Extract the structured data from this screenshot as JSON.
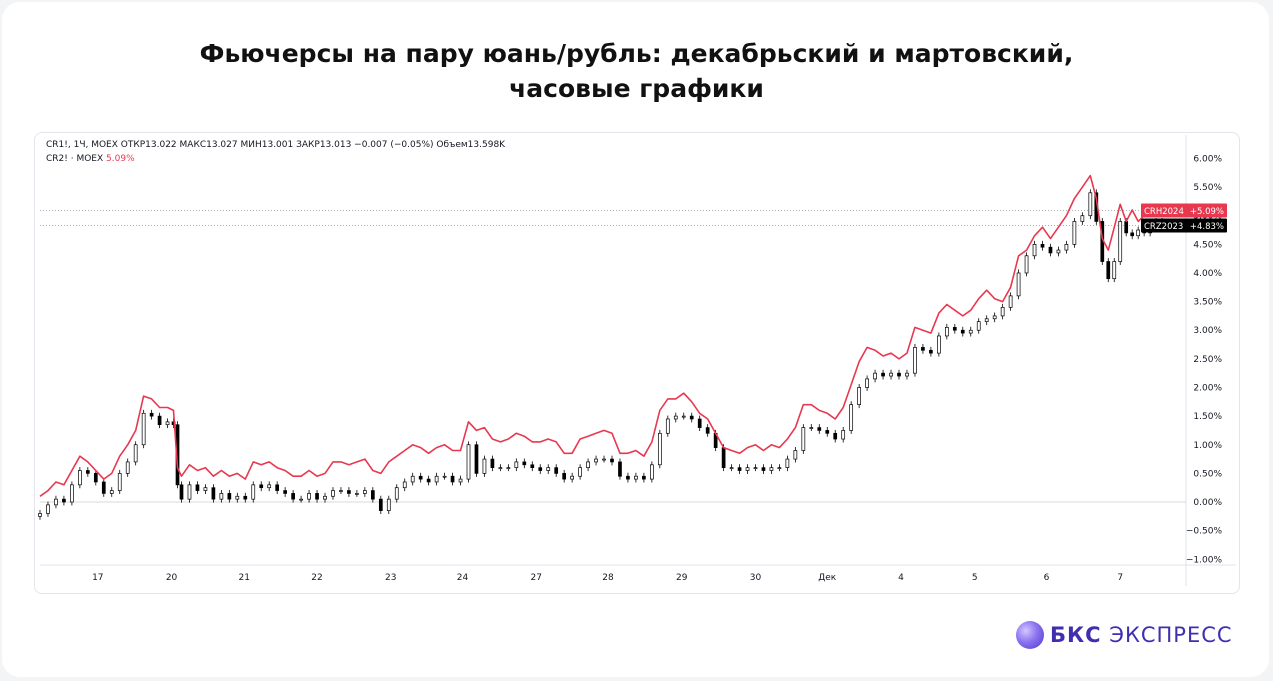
{
  "title_line1": "Фьючерсы на пару юань/рубль: декабрьский и мартовский,",
  "title_line2": "часовые графики",
  "legend": {
    "line1": "CR1!, 1Ч, MOEX  ОТКР13.022  МАКС13.027  МИН13.001  ЗАКР13.013  −0.007 (−0.05%)  Объем13.598K",
    "line2_prefix": "CR2! · MOEX",
    "line2_value": "5.09%"
  },
  "brand": {
    "bold": "БКС",
    "rest": "ЭКСПРЕСС"
  },
  "colors": {
    "line": "#e8384f",
    "candle_up": "#ffffff",
    "candle_down": "#000000",
    "label_red": "#e8384f",
    "label_black": "#000000"
  },
  "chart_data": {
    "type": "line",
    "y_unit": "%",
    "ylim": [
      -1.1,
      6.2
    ],
    "y_ticks": [
      "6.00%",
      "5.50%",
      "5.00%",
      "4.50%",
      "4.00%",
      "3.50%",
      "3.00%",
      "2.50%",
      "2.00%",
      "1.50%",
      "1.00%",
      "0.50%",
      "0.00%",
      "−0.50%",
      "−1.00%"
    ],
    "y_tick_values": [
      6,
      5.5,
      5,
      4.5,
      4,
      3.5,
      3,
      2.5,
      2,
      1.5,
      1,
      0.5,
      0,
      -0.5,
      -1
    ],
    "xlim": [
      0,
      1150
    ],
    "x_ticks": [
      "17",
      "20",
      "21",
      "22",
      "23",
      "24",
      "27",
      "28",
      "29",
      "30",
      "Дек",
      "4",
      "5",
      "6",
      "7"
    ],
    "x_tick_values": [
      58,
      132,
      205,
      278,
      352,
      424,
      498,
      570,
      644,
      718,
      790,
      864,
      938,
      1010,
      1084
    ],
    "price_labels": [
      {
        "name": "CRH2024",
        "text": "CRH2024",
        "value": "+5.09%",
        "y": 5.09,
        "color": "#e8384f"
      },
      {
        "name": "CRZ2023",
        "text": "CRZ2023",
        "value": "+4.83%",
        "y": 4.83,
        "color": "#000000"
      }
    ],
    "series": [
      {
        "name": "CR2!",
        "style": "line",
        "points": [
          [
            0,
            0.1
          ],
          [
            8,
            0.2
          ],
          [
            16,
            0.35
          ],
          [
            24,
            0.3
          ],
          [
            32,
            0.55
          ],
          [
            40,
            0.8
          ],
          [
            48,
            0.7
          ],
          [
            56,
            0.55
          ],
          [
            64,
            0.4
          ],
          [
            72,
            0.5
          ],
          [
            80,
            0.8
          ],
          [
            88,
            1.0
          ],
          [
            96,
            1.25
          ],
          [
            104,
            1.85
          ],
          [
            112,
            1.8
          ],
          [
            120,
            1.65
          ],
          [
            128,
            1.65
          ],
          [
            134,
            1.6
          ],
          [
            138,
            0.6
          ],
          [
            142,
            0.45
          ],
          [
            150,
            0.65
          ],
          [
            158,
            0.55
          ],
          [
            166,
            0.6
          ],
          [
            174,
            0.45
          ],
          [
            182,
            0.55
          ],
          [
            190,
            0.45
          ],
          [
            198,
            0.5
          ],
          [
            206,
            0.4
          ],
          [
            214,
            0.7
          ],
          [
            222,
            0.65
          ],
          [
            230,
            0.7
          ],
          [
            238,
            0.6
          ],
          [
            246,
            0.55
          ],
          [
            254,
            0.45
          ],
          [
            262,
            0.45
          ],
          [
            270,
            0.55
          ],
          [
            278,
            0.45
          ],
          [
            286,
            0.5
          ],
          [
            294,
            0.7
          ],
          [
            302,
            0.7
          ],
          [
            310,
            0.65
          ],
          [
            318,
            0.7
          ],
          [
            326,
            0.75
          ],
          [
            334,
            0.55
          ],
          [
            342,
            0.5
          ],
          [
            350,
            0.7
          ],
          [
            358,
            0.8
          ],
          [
            366,
            0.9
          ],
          [
            374,
            1.0
          ],
          [
            382,
            0.95
          ],
          [
            390,
            0.85
          ],
          [
            398,
            0.95
          ],
          [
            406,
            1.0
          ],
          [
            414,
            0.9
          ],
          [
            422,
            0.9
          ],
          [
            430,
            1.4
          ],
          [
            438,
            1.25
          ],
          [
            446,
            1.3
          ],
          [
            454,
            1.1
          ],
          [
            462,
            1.05
          ],
          [
            470,
            1.1
          ],
          [
            478,
            1.2
          ],
          [
            486,
            1.15
          ],
          [
            494,
            1.05
          ],
          [
            502,
            1.05
          ],
          [
            510,
            1.1
          ],
          [
            518,
            1.05
          ],
          [
            526,
            0.85
          ],
          [
            534,
            0.85
          ],
          [
            542,
            1.1
          ],
          [
            550,
            1.15
          ],
          [
            558,
            1.2
          ],
          [
            566,
            1.25
          ],
          [
            574,
            1.2
          ],
          [
            582,
            0.85
          ],
          [
            590,
            0.85
          ],
          [
            598,
            0.9
          ],
          [
            606,
            0.8
          ],
          [
            614,
            1.05
          ],
          [
            622,
            1.6
          ],
          [
            630,
            1.8
          ],
          [
            638,
            1.8
          ],
          [
            646,
            1.9
          ],
          [
            654,
            1.75
          ],
          [
            662,
            1.55
          ],
          [
            670,
            1.45
          ],
          [
            678,
            1.2
          ],
          [
            686,
            0.95
          ],
          [
            694,
            0.9
          ],
          [
            702,
            0.85
          ],
          [
            710,
            0.95
          ],
          [
            718,
            1.0
          ],
          [
            726,
            0.9
          ],
          [
            734,
            1.0
          ],
          [
            742,
            0.95
          ],
          [
            750,
            1.1
          ],
          [
            758,
            1.3
          ],
          [
            766,
            1.7
          ],
          [
            774,
            1.7
          ],
          [
            782,
            1.6
          ],
          [
            790,
            1.55
          ],
          [
            798,
            1.45
          ],
          [
            806,
            1.65
          ],
          [
            814,
            2.05
          ],
          [
            822,
            2.45
          ],
          [
            830,
            2.7
          ],
          [
            838,
            2.65
          ],
          [
            846,
            2.55
          ],
          [
            854,
            2.6
          ],
          [
            862,
            2.5
          ],
          [
            870,
            2.6
          ],
          [
            878,
            3.05
          ],
          [
            886,
            3.0
          ],
          [
            894,
            2.95
          ],
          [
            902,
            3.3
          ],
          [
            910,
            3.45
          ],
          [
            918,
            3.35
          ],
          [
            926,
            3.25
          ],
          [
            934,
            3.35
          ],
          [
            942,
            3.55
          ],
          [
            950,
            3.7
          ],
          [
            958,
            3.55
          ],
          [
            966,
            3.5
          ],
          [
            974,
            3.75
          ],
          [
            982,
            4.3
          ],
          [
            990,
            4.4
          ],
          [
            998,
            4.65
          ],
          [
            1006,
            4.8
          ],
          [
            1014,
            4.6
          ],
          [
            1022,
            4.8
          ],
          [
            1030,
            5.0
          ],
          [
            1038,
            5.3
          ],
          [
            1046,
            5.5
          ],
          [
            1054,
            5.7
          ],
          [
            1060,
            5.3
          ],
          [
            1066,
            4.6
          ],
          [
            1072,
            4.4
          ],
          [
            1078,
            4.8
          ],
          [
            1084,
            5.2
          ],
          [
            1090,
            4.9
          ],
          [
            1096,
            5.1
          ],
          [
            1102,
            4.9
          ],
          [
            1108,
            5.0
          ],
          [
            1114,
            5.1
          ],
          [
            1120,
            5.2
          ],
          [
            1126,
            5.09
          ]
        ]
      },
      {
        "name": "CR1!",
        "style": "candles",
        "points": [
          [
            0,
            -0.2
          ],
          [
            8,
            -0.05
          ],
          [
            16,
            0.05
          ],
          [
            24,
            0.0
          ],
          [
            32,
            0.3
          ],
          [
            40,
            0.55
          ],
          [
            48,
            0.5
          ],
          [
            56,
            0.35
          ],
          [
            64,
            0.15
          ],
          [
            72,
            0.2
          ],
          [
            80,
            0.5
          ],
          [
            88,
            0.7
          ],
          [
            96,
            1.0
          ],
          [
            104,
            1.55
          ],
          [
            112,
            1.5
          ],
          [
            120,
            1.35
          ],
          [
            128,
            1.4
          ],
          [
            134,
            1.35
          ],
          [
            138,
            0.3
          ],
          [
            142,
            0.05
          ],
          [
            150,
            0.3
          ],
          [
            158,
            0.2
          ],
          [
            166,
            0.25
          ],
          [
            174,
            0.05
          ],
          [
            182,
            0.15
          ],
          [
            190,
            0.05
          ],
          [
            198,
            0.1
          ],
          [
            206,
            0.05
          ],
          [
            214,
            0.3
          ],
          [
            222,
            0.25
          ],
          [
            230,
            0.3
          ],
          [
            238,
            0.2
          ],
          [
            246,
            0.15
          ],
          [
            254,
            0.05
          ],
          [
            262,
            0.05
          ],
          [
            270,
            0.15
          ],
          [
            278,
            0.05
          ],
          [
            286,
            0.1
          ],
          [
            294,
            0.2
          ],
          [
            302,
            0.2
          ],
          [
            310,
            0.15
          ],
          [
            318,
            0.15
          ],
          [
            326,
            0.2
          ],
          [
            334,
            0.05
          ],
          [
            342,
            -0.15
          ],
          [
            350,
            0.05
          ],
          [
            358,
            0.25
          ],
          [
            366,
            0.35
          ],
          [
            374,
            0.45
          ],
          [
            382,
            0.4
          ],
          [
            390,
            0.35
          ],
          [
            398,
            0.45
          ],
          [
            406,
            0.45
          ],
          [
            414,
            0.35
          ],
          [
            422,
            0.4
          ],
          [
            430,
            1.0
          ],
          [
            438,
            0.5
          ],
          [
            446,
            0.75
          ],
          [
            454,
            0.6
          ],
          [
            462,
            0.6
          ],
          [
            470,
            0.6
          ],
          [
            478,
            0.7
          ],
          [
            486,
            0.65
          ],
          [
            494,
            0.6
          ],
          [
            502,
            0.55
          ],
          [
            510,
            0.6
          ],
          [
            518,
            0.5
          ],
          [
            526,
            0.4
          ],
          [
            534,
            0.45
          ],
          [
            542,
            0.6
          ],
          [
            550,
            0.7
          ],
          [
            558,
            0.75
          ],
          [
            566,
            0.75
          ],
          [
            574,
            0.7
          ],
          [
            582,
            0.45
          ],
          [
            590,
            0.4
          ],
          [
            598,
            0.45
          ],
          [
            606,
            0.4
          ],
          [
            614,
            0.65
          ],
          [
            622,
            1.2
          ],
          [
            630,
            1.45
          ],
          [
            638,
            1.5
          ],
          [
            646,
            1.5
          ],
          [
            654,
            1.45
          ],
          [
            662,
            1.3
          ],
          [
            670,
            1.2
          ],
          [
            678,
            0.95
          ],
          [
            686,
            0.6
          ],
          [
            694,
            0.6
          ],
          [
            702,
            0.55
          ],
          [
            710,
            0.6
          ],
          [
            718,
            0.6
          ],
          [
            726,
            0.55
          ],
          [
            734,
            0.6
          ],
          [
            742,
            0.6
          ],
          [
            750,
            0.75
          ],
          [
            758,
            0.9
          ],
          [
            766,
            1.3
          ],
          [
            774,
            1.3
          ],
          [
            782,
            1.25
          ],
          [
            790,
            1.2
          ],
          [
            798,
            1.1
          ],
          [
            806,
            1.25
          ],
          [
            814,
            1.7
          ],
          [
            822,
            2.0
          ],
          [
            830,
            2.15
          ],
          [
            838,
            2.25
          ],
          [
            846,
            2.2
          ],
          [
            854,
            2.25
          ],
          [
            862,
            2.2
          ],
          [
            870,
            2.25
          ],
          [
            878,
            2.7
          ],
          [
            886,
            2.65
          ],
          [
            894,
            2.6
          ],
          [
            902,
            2.9
          ],
          [
            910,
            3.05
          ],
          [
            918,
            3.0
          ],
          [
            926,
            2.95
          ],
          [
            934,
            3.0
          ],
          [
            942,
            3.15
          ],
          [
            950,
            3.2
          ],
          [
            958,
            3.25
          ],
          [
            966,
            3.4
          ],
          [
            974,
            3.6
          ],
          [
            982,
            4.0
          ],
          [
            990,
            4.3
          ],
          [
            998,
            4.5
          ],
          [
            1006,
            4.45
          ],
          [
            1014,
            4.35
          ],
          [
            1022,
            4.4
          ],
          [
            1030,
            4.5
          ],
          [
            1038,
            4.9
          ],
          [
            1046,
            5.0
          ],
          [
            1054,
            5.4
          ],
          [
            1060,
            4.9
          ],
          [
            1066,
            4.2
          ],
          [
            1072,
            3.9
          ],
          [
            1078,
            4.2
          ],
          [
            1084,
            4.9
          ],
          [
            1090,
            4.7
          ],
          [
            1096,
            4.65
          ],
          [
            1102,
            4.75
          ],
          [
            1108,
            4.7
          ],
          [
            1114,
            4.8
          ],
          [
            1120,
            4.9
          ],
          [
            1126,
            4.83
          ]
        ]
      }
    ],
    "legend_placement": "top-left",
    "grid": false
  }
}
